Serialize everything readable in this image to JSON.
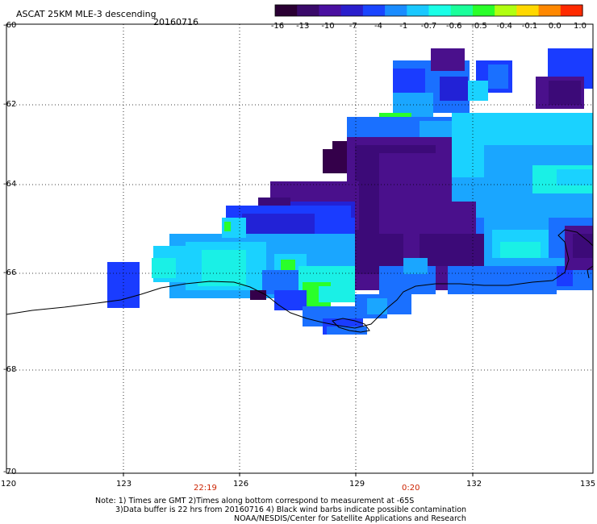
{
  "header": {
    "title": "ASCAT 25KM MLE-3 descending",
    "date": "20160716"
  },
  "colorbar": {
    "tick_labels": [
      "-16",
      "-13",
      "-10",
      "-7",
      "-4",
      "-1",
      "-0.7",
      "-0.6",
      "-0.5",
      "-0.4",
      "-0.1",
      "0.0",
      "1.0"
    ],
    "colors": [
      "#2a0033",
      "#3a0a6a",
      "#4a10a0",
      "#2a1ecc",
      "#1a45ff",
      "#1a8cff",
      "#1ac8ff",
      "#1affe6",
      "#1aff9a",
      "#2aff2a",
      "#b0ff10",
      "#ffd800",
      "#ff8800",
      "#ff2a00"
    ]
  },
  "axes": {
    "lat_labels": [
      "-60",
      "-62",
      "-64",
      "-66",
      "-68",
      "-70"
    ],
    "lon_labels": [
      "120",
      "123",
      "126",
      "129",
      "132",
      "135"
    ]
  },
  "times": [
    "22:19",
    "0:20"
  ],
  "notes": [
    "Note: 1) Times are GMT 2)Times along bottom correspond to measurement at -65S",
    "3)Data buffer is 22 hrs from 20160716 4) Black wind barbs indicate possible contamination",
    "NOAA/NESDIS/Center for Satellite Applications and Research"
  ]
}
